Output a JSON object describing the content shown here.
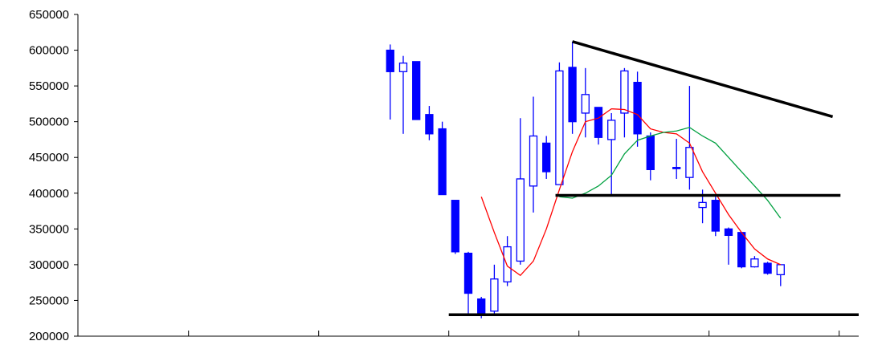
{
  "chart_data": {
    "type": "candlestick",
    "title": "",
    "xlabel": "",
    "ylabel": "",
    "ylim": [
      200000,
      650000
    ],
    "y_ticks": [
      {
        "value": 650000,
        "label": "650000"
      },
      {
        "value": 600000,
        "label": "600000"
      },
      {
        "value": 550000,
        "label": "550000"
      },
      {
        "value": 500000,
        "label": "500000"
      },
      {
        "value": 450000,
        "label": "450000"
      },
      {
        "value": 400000,
        "label": "400000"
      },
      {
        "value": 350000,
        "label": "350000"
      },
      {
        "value": 300000,
        "label": "300000"
      },
      {
        "value": 250000,
        "label": "250000"
      },
      {
        "value": 200000,
        "label": "200000"
      }
    ],
    "x_range": [
      0,
      60
    ],
    "x_ticks": [
      8.5,
      18.5,
      28.5,
      38.5,
      48.5,
      58.5
    ],
    "grid": false,
    "legend": "none",
    "colors": {
      "candle": "#0000ff",
      "ma_short": "#ff0000",
      "ma_long": "#00a040",
      "trendline": "#000000"
    },
    "candles": [
      {
        "x": 24,
        "open": 600000,
        "high": 608000,
        "low": 503000,
        "close": 570000
      },
      {
        "x": 25,
        "open": 570000,
        "high": 592000,
        "low": 483000,
        "close": 582000
      },
      {
        "x": 26,
        "open": 584000,
        "high": 584000,
        "low": 503000,
        "close": 503000
      },
      {
        "x": 27,
        "open": 510000,
        "high": 522000,
        "low": 474000,
        "close": 483000
      },
      {
        "x": 28,
        "open": 490000,
        "high": 500000,
        "low": 398000,
        "close": 398000
      },
      {
        "x": 29,
        "open": 390000,
        "high": 390000,
        "low": 315000,
        "close": 318000
      },
      {
        "x": 30,
        "open": 316000,
        "high": 318000,
        "low": 232000,
        "close": 260000
      },
      {
        "x": 31,
        "open": 252000,
        "high": 255000,
        "low": 225000,
        "close": 232000
      },
      {
        "x": 32,
        "open": 235000,
        "high": 300000,
        "low": 230000,
        "close": 280000
      },
      {
        "x": 33,
        "open": 276000,
        "high": 340000,
        "low": 270000,
        "close": 325000
      },
      {
        "x": 34,
        "open": 305000,
        "high": 505000,
        "low": 300000,
        "close": 420000
      },
      {
        "x": 35,
        "open": 410000,
        "high": 535000,
        "low": 373000,
        "close": 480000
      },
      {
        "x": 36,
        "open": 470000,
        "high": 480000,
        "low": 420000,
        "close": 430000
      },
      {
        "x": 37,
        "open": 412000,
        "high": 583000,
        "low": 412000,
        "close": 571000
      },
      {
        "x": 38,
        "open": 576000,
        "high": 612000,
        "low": 483000,
        "close": 500000
      },
      {
        "x": 39,
        "open": 512000,
        "high": 575000,
        "low": 478000,
        "close": 538000
      },
      {
        "x": 40,
        "open": 520000,
        "high": 520000,
        "low": 468000,
        "close": 478000
      },
      {
        "x": 41,
        "open": 475000,
        "high": 512000,
        "low": 398000,
        "close": 502000
      },
      {
        "x": 42,
        "open": 512000,
        "high": 575000,
        "low": 478000,
        "close": 571000
      },
      {
        "x": 43,
        "open": 555000,
        "high": 570000,
        "low": 465000,
        "close": 483000
      },
      {
        "x": 44,
        "open": 480000,
        "high": 485000,
        "low": 418000,
        "close": 433000
      },
      {
        "x": 46,
        "open": 436000,
        "high": 476000,
        "low": 420000,
        "close": 436000
      },
      {
        "x": 47,
        "open": 422000,
        "high": 550000,
        "low": 405000,
        "close": 464000
      },
      {
        "x": 48,
        "open": 380000,
        "high": 405000,
        "low": 358000,
        "close": 387000
      },
      {
        "x": 49,
        "open": 390000,
        "high": 395000,
        "low": 340000,
        "close": 347000
      },
      {
        "x": 50,
        "open": 350000,
        "high": 352000,
        "low": 300000,
        "close": 341000
      },
      {
        "x": 51,
        "open": 345000,
        "high": 345000,
        "low": 295000,
        "close": 297000
      },
      {
        "x": 52,
        "open": 297000,
        "high": 312000,
        "low": 296000,
        "close": 308000
      },
      {
        "x": 53,
        "open": 302000,
        "high": 304000,
        "low": 286000,
        "close": 288000
      },
      {
        "x": 54,
        "open": 286000,
        "high": 300000,
        "low": 270000,
        "close": 300000
      }
    ],
    "ma_short": [
      [
        31,
        395000
      ],
      [
        32,
        345000
      ],
      [
        33,
        298000
      ],
      [
        34,
        285000
      ],
      [
        35,
        305000
      ],
      [
        36,
        350000
      ],
      [
        37,
        405000
      ],
      [
        38,
        458000
      ],
      [
        39,
        500000
      ],
      [
        40,
        505000
      ],
      [
        41,
        518000
      ],
      [
        42,
        517000
      ],
      [
        43,
        510000
      ],
      [
        44,
        490000
      ],
      [
        45,
        485000
      ],
      [
        46,
        483000
      ],
      [
        47,
        470000
      ],
      [
        48,
        430000
      ],
      [
        49,
        400000
      ],
      [
        50,
        370000
      ],
      [
        51,
        345000
      ],
      [
        52,
        322000
      ],
      [
        53,
        308000
      ],
      [
        54,
        300000
      ]
    ],
    "ma_long": [
      [
        37,
        395000
      ],
      [
        38,
        393000
      ],
      [
        39,
        400000
      ],
      [
        40,
        410000
      ],
      [
        41,
        425000
      ],
      [
        42,
        455000
      ],
      [
        43,
        474000
      ],
      [
        44,
        480000
      ],
      [
        45,
        485000
      ],
      [
        46,
        487000
      ],
      [
        47,
        492000
      ],
      [
        48,
        480000
      ],
      [
        49,
        470000
      ],
      [
        50,
        450000
      ],
      [
        51,
        430000
      ],
      [
        52,
        410000
      ],
      [
        53,
        390000
      ],
      [
        54,
        365000
      ]
    ],
    "trendlines": [
      {
        "from": [
          38,
          612000
        ],
        "to": [
          58,
          507000
        ]
      },
      {
        "from": [
          36.7,
          397000
        ],
        "to": [
          58.6,
          397000
        ]
      },
      {
        "from": [
          28.5,
          230000
        ],
        "to": [
          60,
          230000
        ]
      }
    ]
  }
}
